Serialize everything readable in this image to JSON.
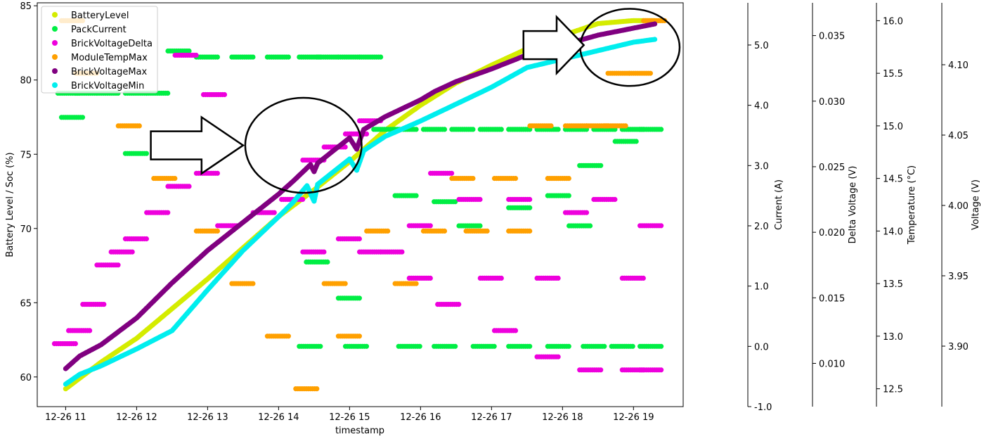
{
  "chart_data": {
    "type": "scatter",
    "xlabel": "timestamp",
    "ylabel": "Battery Level / Soc (%)",
    "x_ticks": [
      "12-26 11",
      "12-26 12",
      "12-26 13",
      "12-26 14",
      "12-26 15",
      "12-26 16",
      "12-26 17",
      "12-26 18",
      "12-26 19"
    ],
    "xlim": [
      10.6,
      19.7
    ],
    "ylim": [
      58,
      85.2
    ],
    "y_ticks": [
      60,
      65,
      70,
      75,
      80,
      85
    ],
    "grid": false,
    "legend_position": "top-left",
    "secondary_axes": [
      {
        "label": "Current (A)",
        "ticks": [
          -1.0,
          0.0,
          1.0,
          2.0,
          3.0,
          4.0,
          5.0
        ],
        "range": [
          -1.0,
          5.7
        ],
        "tick_decimals": 1
      },
      {
        "label": "Delta Voltage (V)",
        "ticks": [
          0.01,
          0.015,
          0.02,
          0.025,
          0.03,
          0.035
        ],
        "range": [
          0.0067,
          0.0375
        ],
        "tick_decimals": 3
      },
      {
        "label": "Temperature (°C)",
        "ticks": [
          12.5,
          13.0,
          13.5,
          14.0,
          14.5,
          15.0,
          15.5,
          16.0
        ],
        "range": [
          12.33,
          16.17
        ],
        "tick_decimals": 1
      },
      {
        "label": "Voltage (V)",
        "ticks": [
          3.9,
          3.95,
          4.0,
          4.05,
          4.1
        ],
        "range": [
          3.857,
          4.144
        ],
        "tick_decimals": 2
      }
    ],
    "series": [
      {
        "name": "BatteryLevel",
        "color": "#d4ec00",
        "axis": "soc",
        "points": [
          [
            11.0,
            59.2
          ],
          [
            11.5,
            61.0
          ],
          [
            12.0,
            62.6
          ],
          [
            12.5,
            64.6
          ],
          [
            13.0,
            66.6
          ],
          [
            13.5,
            68.7
          ],
          [
            14.0,
            70.8
          ],
          [
            14.5,
            72.6
          ],
          [
            15.0,
            74.5
          ],
          [
            15.5,
            76.6
          ],
          [
            16.0,
            78.3
          ],
          [
            16.5,
            79.8
          ],
          [
            17.0,
            81.0
          ],
          [
            17.5,
            82.1
          ],
          [
            18.0,
            83.0
          ],
          [
            18.5,
            83.8
          ],
          [
            19.0,
            84.0
          ],
          [
            19.3,
            84.0
          ]
        ]
      },
      {
        "name": "PackCurrent",
        "color": "#00ee44",
        "axis": "current",
        "points": [
          [
            11.05,
            4.2
          ],
          [
            11.3,
            4.2
          ],
          [
            11.6,
            4.2
          ],
          [
            12.0,
            4.2
          ],
          [
            12.3,
            4.2
          ],
          [
            12.6,
            4.9
          ],
          [
            13.0,
            4.8
          ],
          [
            13.5,
            4.8
          ],
          [
            14.0,
            4.8
          ],
          [
            14.45,
            4.8
          ],
          [
            14.7,
            4.8
          ],
          [
            15.0,
            4.8
          ],
          [
            15.3,
            4.8
          ],
          [
            15.5,
            3.6
          ],
          [
            15.8,
            3.6
          ],
          [
            16.2,
            3.6
          ],
          [
            16.6,
            3.6
          ],
          [
            17.0,
            3.6
          ],
          [
            17.4,
            3.6
          ],
          [
            17.8,
            3.6
          ],
          [
            18.2,
            3.6
          ],
          [
            18.6,
            3.6
          ],
          [
            19.0,
            3.6
          ],
          [
            19.25,
            3.6
          ],
          [
            14.45,
            0.0
          ],
          [
            15.1,
            0.0
          ],
          [
            15.85,
            0.0
          ],
          [
            16.35,
            0.0
          ],
          [
            16.9,
            0.0
          ],
          [
            17.4,
            0.0
          ],
          [
            17.95,
            0.0
          ],
          [
            18.45,
            0.0
          ],
          [
            18.85,
            0.0
          ],
          [
            19.25,
            0.0
          ],
          [
            11.1,
            3.8
          ],
          [
            12.0,
            3.2
          ],
          [
            12.5,
            3.2
          ],
          [
            14.55,
            1.4
          ],
          [
            15.0,
            0.8
          ],
          [
            15.8,
            2.5
          ],
          [
            16.35,
            2.4
          ],
          [
            16.7,
            2.0
          ],
          [
            17.4,
            2.3
          ],
          [
            17.95,
            2.5
          ],
          [
            18.25,
            2.0
          ],
          [
            18.4,
            3.0
          ],
          [
            18.9,
            3.4
          ]
        ]
      },
      {
        "name": "BrickVoltageDelta",
        "color": "#ee00dd",
        "axis": "delta_v",
        "points": [
          [
            11.0,
            0.0115
          ],
          [
            11.2,
            0.0125
          ],
          [
            11.4,
            0.0145
          ],
          [
            11.6,
            0.0175
          ],
          [
            11.8,
            0.0185
          ],
          [
            12.0,
            0.0195
          ],
          [
            12.3,
            0.0215
          ],
          [
            12.6,
            0.0235
          ],
          [
            13.0,
            0.0245
          ],
          [
            13.3,
            0.0205
          ],
          [
            13.8,
            0.0215
          ],
          [
            14.2,
            0.0225
          ],
          [
            14.5,
            0.0255
          ],
          [
            14.8,
            0.0265
          ],
          [
            15.1,
            0.0275
          ],
          [
            15.3,
            0.0285
          ],
          [
            15.6,
            0.0185
          ],
          [
            16.0,
            0.0205
          ],
          [
            16.3,
            0.0245
          ],
          [
            16.7,
            0.0225
          ],
          [
            17.0,
            0.0165
          ],
          [
            17.4,
            0.0225
          ],
          [
            17.8,
            0.0165
          ],
          [
            18.2,
            0.0215
          ],
          [
            18.6,
            0.0225
          ],
          [
            19.0,
            0.0165
          ],
          [
            19.25,
            0.0205
          ],
          [
            12.7,
            0.0335
          ],
          [
            13.1,
            0.0305
          ],
          [
            14.5,
            0.0185
          ],
          [
            15.0,
            0.0195
          ],
          [
            15.3,
            0.0185
          ],
          [
            16.0,
            0.0165
          ],
          [
            16.4,
            0.0145
          ],
          [
            17.2,
            0.0125
          ],
          [
            17.8,
            0.0105
          ],
          [
            18.4,
            0.0095
          ],
          [
            19.0,
            0.0095
          ],
          [
            19.25,
            0.0095
          ]
        ]
      },
      {
        "name": "ModuleTempMax",
        "color": "#ffa000",
        "axis": "temp",
        "points": [
          [
            11.1,
            16.0
          ],
          [
            11.3,
            15.5
          ],
          [
            11.9,
            15.0
          ],
          [
            12.4,
            14.5
          ],
          [
            13.0,
            14.0
          ],
          [
            13.5,
            13.5
          ],
          [
            14.0,
            13.0
          ],
          [
            14.4,
            12.5
          ],
          [
            14.8,
            13.5
          ],
          [
            15.0,
            13.0
          ],
          [
            15.4,
            14.0
          ],
          [
            15.8,
            13.5
          ],
          [
            16.2,
            14.0
          ],
          [
            16.6,
            14.5
          ],
          [
            16.8,
            14.0
          ],
          [
            17.2,
            14.5
          ],
          [
            17.4,
            14.0
          ],
          [
            17.7,
            15.0
          ],
          [
            17.95,
            14.5
          ],
          [
            18.2,
            15.0
          ],
          [
            18.5,
            15.0
          ],
          [
            18.75,
            15.0
          ],
          [
            18.8,
            15.5
          ],
          [
            19.1,
            15.5
          ],
          [
            19.3,
            16.0
          ]
        ]
      },
      {
        "name": "BrickVoltageMax",
        "color": "#800080",
        "axis": "voltage",
        "points": [
          [
            11.0,
            3.884
          ],
          [
            11.2,
            3.893
          ],
          [
            11.5,
            3.901
          ],
          [
            12.0,
            3.92
          ],
          [
            12.5,
            3.945
          ],
          [
            13.0,
            3.968
          ],
          [
            13.5,
            3.988
          ],
          [
            14.0,
            4.008
          ],
          [
            14.2,
            4.017
          ],
          [
            14.45,
            4.029
          ],
          [
            14.5,
            4.024
          ],
          [
            14.55,
            4.03
          ],
          [
            15.0,
            4.048
          ],
          [
            15.1,
            4.04
          ],
          [
            15.2,
            4.054
          ],
          [
            15.5,
            4.063
          ],
          [
            16.0,
            4.075
          ],
          [
            16.2,
            4.081
          ],
          [
            16.5,
            4.088
          ],
          [
            17.0,
            4.097
          ],
          [
            17.5,
            4.107
          ],
          [
            18.0,
            4.114
          ],
          [
            18.5,
            4.121
          ],
          [
            19.0,
            4.126
          ],
          [
            19.3,
            4.129
          ]
        ]
      },
      {
        "name": "BrickVoltageMin",
        "color": "#00eeee",
        "axis": "voltage",
        "points": [
          [
            11.0,
            3.873
          ],
          [
            11.2,
            3.88
          ],
          [
            11.5,
            3.886
          ],
          [
            12.0,
            3.898
          ],
          [
            12.5,
            3.911
          ],
          [
            13.0,
            3.94
          ],
          [
            13.5,
            3.968
          ],
          [
            14.0,
            3.992
          ],
          [
            14.2,
            4.002
          ],
          [
            14.4,
            4.014
          ],
          [
            14.5,
            4.003
          ],
          [
            14.55,
            4.015
          ],
          [
            15.0,
            4.033
          ],
          [
            15.1,
            4.025
          ],
          [
            15.2,
            4.039
          ],
          [
            15.5,
            4.049
          ],
          [
            16.0,
            4.06
          ],
          [
            16.5,
            4.072
          ],
          [
            17.0,
            4.084
          ],
          [
            17.5,
            4.098
          ],
          [
            18.0,
            4.104
          ],
          [
            18.5,
            4.11
          ],
          [
            19.0,
            4.116
          ],
          [
            19.3,
            4.118
          ]
        ]
      }
    ],
    "annotations": [
      {
        "shape": "ellipse",
        "cx": 14.35,
        "cy": 75.6,
        "rx": 0.82,
        "ry": 3.2
      },
      {
        "shape": "ellipse",
        "cx": 18.95,
        "cy": 82.2,
        "rx": 0.7,
        "ry": 2.6
      },
      {
        "shape": "arrow",
        "x1": 12.2,
        "x2": 13.5,
        "y": 75.6
      },
      {
        "shape": "arrow",
        "x1": 17.45,
        "x2": 18.3,
        "y": 82.35
      }
    ]
  }
}
